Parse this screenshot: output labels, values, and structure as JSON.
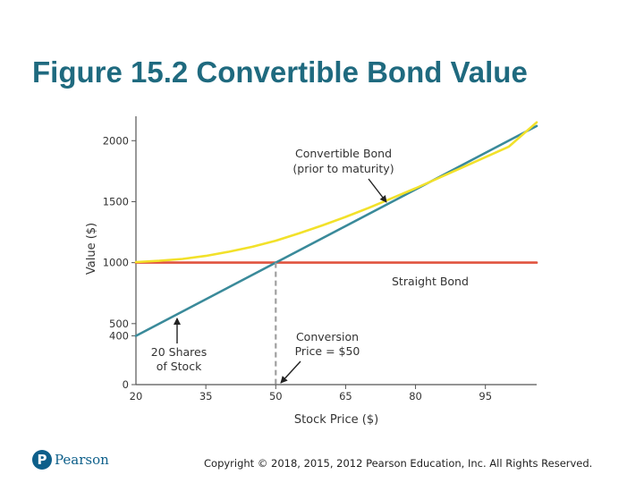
{
  "slide": {
    "title": "Figure 15.2 Convertible Bond Value",
    "logo_text": "Pearson",
    "logo_glyph": "P",
    "copyright": "Copyright © 2018, 2015, 2012 Pearson Education, Inc. All Rights Reserved."
  },
  "chart_data": {
    "type": "line",
    "title": "",
    "xlabel": "Stock Price ($)",
    "ylabel": "Value ($)",
    "xlim": [
      20,
      107
    ],
    "ylim": [
      0,
      2200
    ],
    "x_ticks": [
      20,
      35,
      50,
      65,
      80,
      95
    ],
    "y_ticks": [
      0,
      400,
      500,
      1000,
      1500,
      2000
    ],
    "grid": false,
    "series": [
      {
        "name": "Straight Bond",
        "color": "#e0533e",
        "x": [
          20,
          106
        ],
        "y": [
          1000,
          1000
        ]
      },
      {
        "name": "20 Shares of Stock",
        "color": "#3a8a9a",
        "x": [
          20,
          106
        ],
        "y": [
          400,
          2120
        ]
      },
      {
        "name": "Convertible Bond (prior to maturity)",
        "color": "#f2e12a",
        "x": [
          20,
          25,
          30,
          35,
          40,
          45,
          50,
          55,
          60,
          65,
          70,
          75,
          80,
          85,
          90,
          95,
          100,
          106
        ],
        "y": [
          1005,
          1015,
          1030,
          1055,
          1090,
          1130,
          1180,
          1240,
          1305,
          1375,
          1450,
          1530,
          1610,
          1695,
          1780,
          1865,
          1950,
          2150
        ]
      }
    ],
    "annotations": [
      {
        "id": "convertible",
        "lines": [
          "Convertible Bond",
          "(prior to maturity)"
        ]
      },
      {
        "id": "straight",
        "lines": [
          "Straight Bond"
        ]
      },
      {
        "id": "conversion",
        "lines": [
          "Conversion",
          "Price = $50"
        ]
      },
      {
        "id": "shares",
        "lines": [
          "20 Shares",
          "of Stock"
        ]
      }
    ],
    "conversion_price": 50
  }
}
